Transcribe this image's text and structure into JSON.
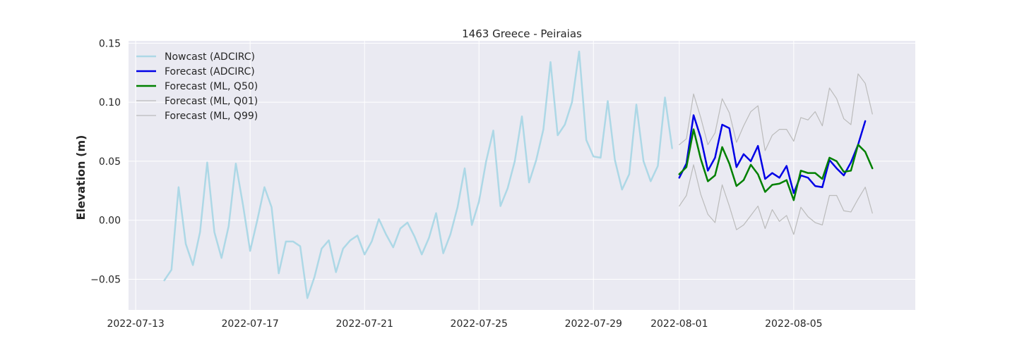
{
  "chart_data": {
    "type": "line",
    "title": "1463 Greece - Peiraias",
    "xlabel": "",
    "ylabel": "Elevation (m)",
    "x_axis_type": "date",
    "xlim": [
      "2022-07-12 18:00",
      "2022-08-09 06:00"
    ],
    "ylim": [
      -0.076,
      0.152
    ],
    "x_ticks": [
      "2022-07-13",
      "2022-07-17",
      "2022-07-21",
      "2022-07-25",
      "2022-07-29",
      "2022-08-01",
      "2022-08-05"
    ],
    "y_ticks": [
      -0.05,
      0.0,
      0.05,
      0.1,
      0.15
    ],
    "y_tick_labels": [
      "−0.05",
      "0.00",
      "0.05",
      "0.10",
      "0.15"
    ],
    "grid": true,
    "legend_position": "top-left",
    "background_color": "#eaeaf2",
    "series": [
      {
        "name": "Nowcast (ADCIRC)",
        "color": "#add8e6",
        "x": [
          "2022-07-14 00:00",
          "2022-07-14 06:00",
          "2022-07-14 12:00",
          "2022-07-14 18:00",
          "2022-07-15 00:00",
          "2022-07-15 06:00",
          "2022-07-15 12:00",
          "2022-07-15 18:00",
          "2022-07-16 00:00",
          "2022-07-16 06:00",
          "2022-07-16 12:00",
          "2022-07-16 18:00",
          "2022-07-17 00:00",
          "2022-07-17 06:00",
          "2022-07-17 12:00",
          "2022-07-17 18:00",
          "2022-07-18 00:00",
          "2022-07-18 06:00",
          "2022-07-18 12:00",
          "2022-07-18 18:00",
          "2022-07-19 00:00",
          "2022-07-19 06:00",
          "2022-07-19 12:00",
          "2022-07-19 18:00",
          "2022-07-20 00:00",
          "2022-07-20 06:00",
          "2022-07-20 12:00",
          "2022-07-20 18:00",
          "2022-07-21 00:00",
          "2022-07-21 06:00",
          "2022-07-21 12:00",
          "2022-07-21 18:00",
          "2022-07-22 00:00",
          "2022-07-22 06:00",
          "2022-07-22 12:00",
          "2022-07-22 18:00",
          "2022-07-23 00:00",
          "2022-07-23 06:00",
          "2022-07-23 12:00",
          "2022-07-23 18:00",
          "2022-07-24 00:00",
          "2022-07-24 06:00",
          "2022-07-24 12:00",
          "2022-07-24 18:00",
          "2022-07-25 00:00",
          "2022-07-25 06:00",
          "2022-07-25 12:00",
          "2022-07-25 18:00",
          "2022-07-26 00:00",
          "2022-07-26 06:00",
          "2022-07-26 12:00",
          "2022-07-26 18:00",
          "2022-07-27 00:00",
          "2022-07-27 06:00",
          "2022-07-27 12:00",
          "2022-07-27 18:00",
          "2022-07-28 00:00",
          "2022-07-28 06:00",
          "2022-07-28 12:00",
          "2022-07-28 18:00",
          "2022-07-29 00:00",
          "2022-07-29 06:00",
          "2022-07-29 12:00",
          "2022-07-29 18:00",
          "2022-07-30 00:00",
          "2022-07-30 06:00",
          "2022-07-30 12:00",
          "2022-07-30 18:00",
          "2022-07-31 00:00",
          "2022-07-31 06:00",
          "2022-07-31 12:00",
          "2022-07-31 18:00"
        ],
        "values": [
          -0.051,
          -0.042,
          0.028,
          -0.02,
          -0.038,
          -0.01,
          0.049,
          -0.01,
          -0.032,
          -0.005,
          0.048,
          0.013,
          -0.026,
          0.0,
          0.028,
          0.011,
          -0.045,
          -0.018,
          -0.018,
          -0.022,
          -0.066,
          -0.048,
          -0.024,
          -0.017,
          -0.044,
          -0.024,
          -0.017,
          -0.013,
          -0.029,
          -0.018,
          0.001,
          -0.012,
          -0.023,
          -0.007,
          -0.002,
          -0.014,
          -0.029,
          -0.015,
          0.006,
          -0.028,
          -0.012,
          0.011,
          0.044,
          -0.004,
          0.016,
          0.05,
          0.076,
          0.012,
          0.027,
          0.05,
          0.088,
          0.032,
          0.051,
          0.077,
          0.134,
          0.072,
          0.081,
          0.1,
          0.143,
          0.068,
          0.054,
          0.053,
          0.101,
          0.051,
          0.026,
          0.039,
          0.098,
          0.05,
          0.033,
          0.046,
          0.104,
          0.061
        ]
      },
      {
        "name": "Forecast (ADCIRC)",
        "color": "#0000e6",
        "x": [
          "2022-08-01 00:00",
          "2022-08-01 06:00",
          "2022-08-01 12:00",
          "2022-08-01 18:00",
          "2022-08-02 00:00",
          "2022-08-02 06:00",
          "2022-08-02 12:00",
          "2022-08-02 18:00",
          "2022-08-03 00:00",
          "2022-08-03 06:00",
          "2022-08-03 12:00",
          "2022-08-03 18:00",
          "2022-08-04 00:00",
          "2022-08-04 06:00",
          "2022-08-04 12:00",
          "2022-08-04 18:00",
          "2022-08-05 00:00",
          "2022-08-05 06:00",
          "2022-08-05 12:00",
          "2022-08-05 18:00",
          "2022-08-06 00:00",
          "2022-08-06 06:00",
          "2022-08-06 12:00",
          "2022-08-06 18:00",
          "2022-08-07 00:00",
          "2022-08-07 06:00",
          "2022-08-07 12:00"
        ],
        "values": [
          0.036,
          0.048,
          0.089,
          0.07,
          0.042,
          0.053,
          0.081,
          0.078,
          0.045,
          0.056,
          0.05,
          0.063,
          0.035,
          0.04,
          0.036,
          0.046,
          0.023,
          0.038,
          0.036,
          0.029,
          0.028,
          0.051,
          0.044,
          0.038,
          0.049,
          0.064,
          0.084
        ]
      },
      {
        "name": "Forecast (ML, Q50)",
        "color": "#008000",
        "x": [
          "2022-08-01 00:00",
          "2022-08-01 06:00",
          "2022-08-01 12:00",
          "2022-08-01 18:00",
          "2022-08-02 00:00",
          "2022-08-02 06:00",
          "2022-08-02 12:00",
          "2022-08-02 18:00",
          "2022-08-03 00:00",
          "2022-08-03 06:00",
          "2022-08-03 12:00",
          "2022-08-03 18:00",
          "2022-08-04 00:00",
          "2022-08-04 06:00",
          "2022-08-04 12:00",
          "2022-08-04 18:00",
          "2022-08-05 00:00",
          "2022-08-05 06:00",
          "2022-08-05 12:00",
          "2022-08-05 18:00",
          "2022-08-06 00:00",
          "2022-08-06 06:00",
          "2022-08-06 12:00",
          "2022-08-06 18:00",
          "2022-08-07 00:00",
          "2022-08-07 06:00",
          "2022-08-07 12:00",
          "2022-08-07 18:00"
        ],
        "values": [
          0.039,
          0.045,
          0.077,
          0.052,
          0.033,
          0.038,
          0.062,
          0.048,
          0.029,
          0.034,
          0.047,
          0.039,
          0.024,
          0.03,
          0.031,
          0.034,
          0.017,
          0.042,
          0.04,
          0.04,
          0.035,
          0.053,
          0.05,
          0.041,
          0.042,
          0.064,
          0.058,
          0.044
        ]
      },
      {
        "name": "Forecast (ML, Q01)",
        "color": "#bbbbbb",
        "x": [
          "2022-08-01 00:00",
          "2022-08-01 06:00",
          "2022-08-01 12:00",
          "2022-08-01 18:00",
          "2022-08-02 00:00",
          "2022-08-02 06:00",
          "2022-08-02 12:00",
          "2022-08-02 18:00",
          "2022-08-03 00:00",
          "2022-08-03 06:00",
          "2022-08-03 12:00",
          "2022-08-03 18:00",
          "2022-08-04 00:00",
          "2022-08-04 06:00",
          "2022-08-04 12:00",
          "2022-08-04 18:00",
          "2022-08-05 00:00",
          "2022-08-05 06:00",
          "2022-08-05 12:00",
          "2022-08-05 18:00",
          "2022-08-06 00:00",
          "2022-08-06 06:00",
          "2022-08-06 12:00",
          "2022-08-06 18:00",
          "2022-08-07 00:00",
          "2022-08-07 06:00",
          "2022-08-07 12:00",
          "2022-08-07 18:00"
        ],
        "values": [
          0.012,
          0.021,
          0.047,
          0.022,
          0.005,
          -0.002,
          0.03,
          0.012,
          -0.008,
          -0.004,
          0.004,
          0.012,
          -0.007,
          0.009,
          -0.001,
          0.004,
          -0.012,
          0.011,
          0.003,
          -0.002,
          -0.004,
          0.021,
          0.021,
          0.008,
          0.007,
          0.018,
          0.028,
          0.006
        ]
      },
      {
        "name": "Forecast (ML, Q99)",
        "color": "#bbbbbb",
        "x": [
          "2022-08-01 00:00",
          "2022-08-01 06:00",
          "2022-08-01 12:00",
          "2022-08-01 18:00",
          "2022-08-02 00:00",
          "2022-08-02 06:00",
          "2022-08-02 12:00",
          "2022-08-02 18:00",
          "2022-08-03 00:00",
          "2022-08-03 06:00",
          "2022-08-03 12:00",
          "2022-08-03 18:00",
          "2022-08-04 00:00",
          "2022-08-04 06:00",
          "2022-08-04 12:00",
          "2022-08-04 18:00",
          "2022-08-05 00:00",
          "2022-08-05 06:00",
          "2022-08-05 12:00",
          "2022-08-05 18:00",
          "2022-08-06 00:00",
          "2022-08-06 06:00",
          "2022-08-06 12:00",
          "2022-08-06 18:00",
          "2022-08-07 00:00",
          "2022-08-07 06:00",
          "2022-08-07 12:00",
          "2022-08-07 18:00"
        ],
        "values": [
          0.064,
          0.069,
          0.107,
          0.087,
          0.064,
          0.074,
          0.103,
          0.091,
          0.066,
          0.08,
          0.092,
          0.097,
          0.059,
          0.072,
          0.077,
          0.077,
          0.067,
          0.087,
          0.085,
          0.092,
          0.08,
          0.112,
          0.103,
          0.086,
          0.081,
          0.124,
          0.116,
          0.09
        ]
      }
    ]
  }
}
